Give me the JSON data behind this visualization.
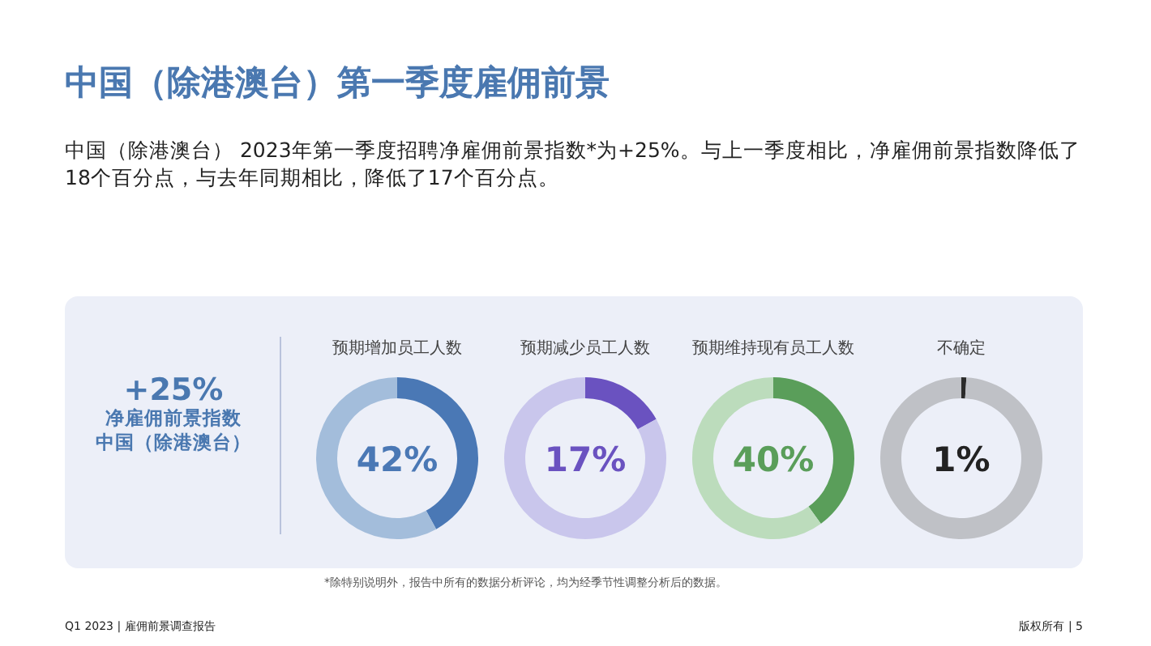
{
  "chart_data": [
    {
      "type": "other",
      "title": "中国（除港澳台）第一季度雇佣前景",
      "subtitle": "中国（除港澳台） 2023年第一季度招聘净雇佣前景指数*为+25%。与上一季度相比，净雇佣前景指数降低了18个百分点，与去年同期相比，降低了17个百分点。",
      "annotations": [
        "+25%",
        "净雇佣前景指数",
        "中国（除港澳台）",
        "*除特别说明外，报告中所有的数据分析评论，均为经季节性调整分析后的数据。",
        "Q1 2023  |  雇佣前景调查报告",
        "版权所有  |  5"
      ]
    },
    {
      "type": "donut",
      "title": "预期增加员工人数",
      "categories": [
        null,
        null
      ],
      "values": [
        42,
        58
      ],
      "colors": [
        "#4a78b5",
        "#a3bddb"
      ],
      "annotations": [
        "42%"
      ]
    },
    {
      "type": "donut",
      "title": "预期减少员工人数",
      "categories": [
        null,
        null
      ],
      "values": [
        17,
        83
      ],
      "colors": [
        "#6a52c0",
        "#c9c6ec"
      ],
      "annotations": [
        "17%"
      ]
    },
    {
      "type": "donut",
      "title": "预期维持现有员工人数",
      "categories": [
        null,
        null
      ],
      "values": [
        40,
        60
      ],
      "colors": [
        "#5a9e5a",
        "#bcdcbc"
      ],
      "annotations": [
        "40%"
      ]
    },
    {
      "type": "donut",
      "title": "不确定",
      "categories": [
        null,
        null
      ],
      "values": [
        1,
        99
      ],
      "colors": [
        "#2b2b2b",
        "#bfc1c6"
      ],
      "annotations": [
        "1%"
      ]
    }
  ]
}
